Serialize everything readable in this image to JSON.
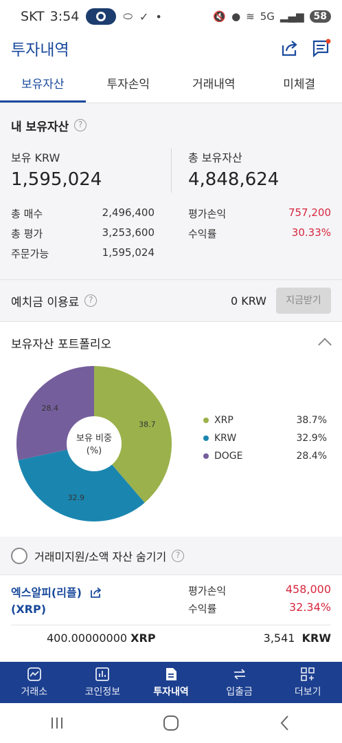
{
  "status_bar": {
    "carrier": "SKT",
    "time": "3:54",
    "battery": "58",
    "network": "5G"
  },
  "header": {
    "title": "투자내역"
  },
  "tabs": [
    {
      "label": "보유자산",
      "active": true
    },
    {
      "label": "투자손익",
      "active": false
    },
    {
      "label": "거래내역",
      "active": false
    },
    {
      "label": "미체결",
      "active": false
    }
  ],
  "holdings": {
    "title": "내 보유자산",
    "krw_label": "보유 KRW",
    "krw_value": "1,595,024",
    "total_label": "총 보유자산",
    "total_value": "4,848,624",
    "stats_left": [
      {
        "label": "총 매수",
        "value": "2,496,400"
      },
      {
        "label": "총 평가",
        "value": "3,253,600"
      },
      {
        "label": "주문가능",
        "value": "1,595,024"
      }
    ],
    "stats_right": [
      {
        "label": "평가손익",
        "value": "757,200"
      },
      {
        "label": "수익률",
        "value": "30.33%"
      }
    ]
  },
  "deposit": {
    "label": "예치금 이용료",
    "amount": "0 KRW",
    "button": "지금받기"
  },
  "portfolio": {
    "title": "보유자산 포트폴리오",
    "center_label_1": "보유 비중",
    "center_label_2": "(%)"
  },
  "chart_data": {
    "type": "pie",
    "title": "",
    "slices": [
      {
        "name": "XRP",
        "value": 38.7,
        "color": "#9bb14b",
        "label": "38.7",
        "legend": "38.7%"
      },
      {
        "name": "KRW",
        "value": 32.9,
        "color": "#1a86b0",
        "label": "32.9",
        "legend": "32.9%"
      },
      {
        "name": "DOGE",
        "value": 28.4,
        "color": "#755e9c",
        "label": "28.4",
        "legend": "28.4%"
      }
    ]
  },
  "hide_small": {
    "label": "거래미지원/소액 자산 숨기기"
  },
  "asset": {
    "name_line1": "엑스알피(리플)",
    "name_line2": "(XRP)",
    "pnl_label": "평가손익",
    "pnl_value": "458,000",
    "return_label": "수익률",
    "return_value": "32.34%",
    "qty": "400.00000000",
    "qty_unit": "XRP",
    "avg_price": "3,541",
    "price_unit": "KRW"
  },
  "bottom_nav": [
    {
      "label": "거래소",
      "icon": "exchange-chart-icon",
      "active": false
    },
    {
      "label": "코인정보",
      "icon": "bar-chart-icon",
      "active": false
    },
    {
      "label": "투자내역",
      "icon": "document-icon",
      "active": true
    },
    {
      "label": "입출금",
      "icon": "transfer-arrows-icon",
      "active": false
    },
    {
      "label": "더보기",
      "icon": "grid-plus-icon",
      "active": false
    }
  ],
  "colors": {
    "brand": "#1a4a9c",
    "nav": "#1c3f8f",
    "loss_gain_red": "#d7263d"
  }
}
